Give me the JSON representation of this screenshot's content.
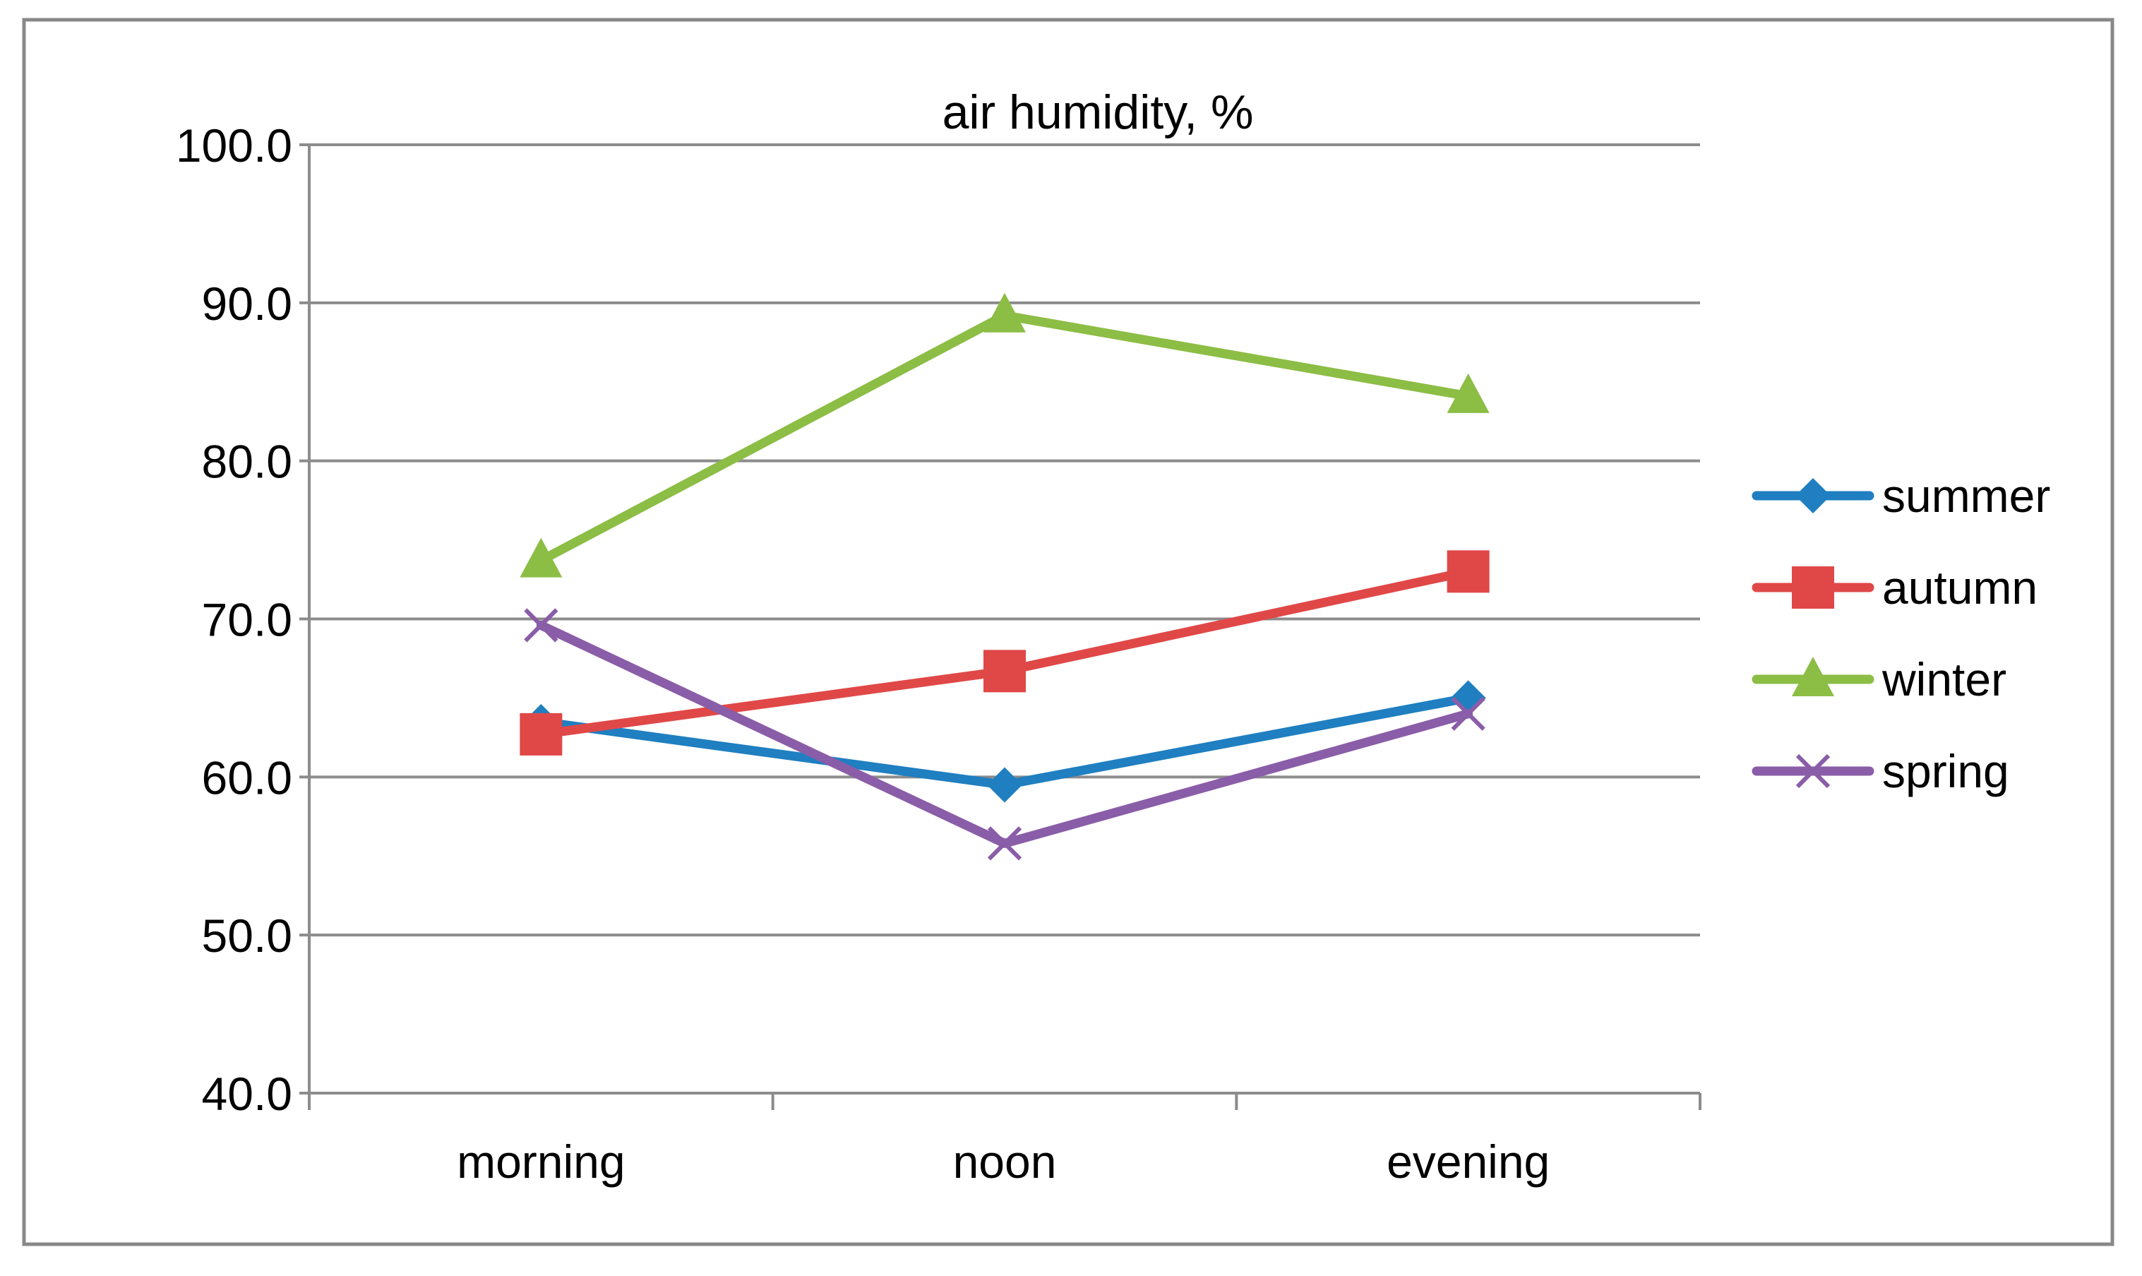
{
  "chart_data": {
    "type": "line",
    "title": "air humidity, %",
    "xlabel": "",
    "ylabel": "",
    "categories": [
      "morning",
      "noon",
      "evening"
    ],
    "ylim": [
      40,
      100
    ],
    "yticks": [
      "40.0",
      "50.0",
      "60.0",
      "70.0",
      "80.0",
      "90.0",
      "100.0"
    ],
    "grid": true,
    "legend_position": "right",
    "series": [
      {
        "name": "summer",
        "values": [
          63.5,
          59.5,
          65.0
        ],
        "color": "#1f7fc1",
        "marker": "diamond"
      },
      {
        "name": "autumn",
        "values": [
          62.7,
          66.7,
          73.0
        ],
        "color": "#e04848",
        "marker": "square"
      },
      {
        "name": "winter",
        "values": [
          73.7,
          89.2,
          84.1
        ],
        "color": "#8cbd45",
        "marker": "triangle"
      },
      {
        "name": "spring",
        "values": [
          69.6,
          55.8,
          64.0
        ],
        "color": "#8a5da8",
        "marker": "x"
      }
    ]
  }
}
